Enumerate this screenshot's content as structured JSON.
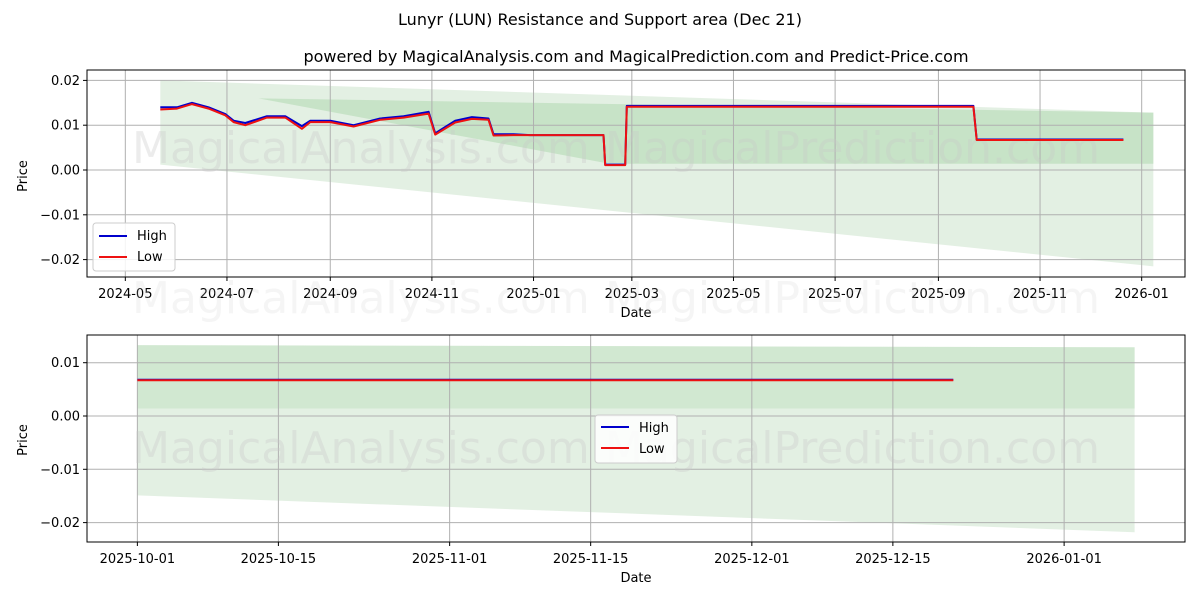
{
  "figure": {
    "title": "Lunyr (LUN) Resistance and Support area (Dec 21)",
    "subtitle": "powered by MagicalAnalysis.com and MagicalPrediction.com and Predict-Price.com",
    "watermarks": [
      "MagicalAnalysis.com",
      "MagicalPrediction.com"
    ]
  },
  "colors": {
    "high": "#0000cc",
    "low": "#ee1111",
    "band_dark": "#b9dcb9",
    "band_light": "#dcecdc",
    "grid": "#b0b0b0"
  },
  "legend": {
    "high_label": "High",
    "low_label": "Low"
  },
  "chart_data": [
    {
      "type": "line",
      "title": "Lunyr (LUN) Resistance and Support area (Dec 21)",
      "xlabel": "Date",
      "ylabel": "Price",
      "x_ticks": [
        "2024-05",
        "2024-07",
        "2024-09",
        "2024-11",
        "2025-01",
        "2025-03",
        "2025-05",
        "2025-07",
        "2025-09",
        "2025-11",
        "2026-01"
      ],
      "y_ticks": [
        "−0.02",
        "−0.01",
        "0.00",
        "0.01",
        "0.02"
      ],
      "ylim": [
        -0.0235,
        0.022
      ],
      "grid": true,
      "legend_position": "lower left",
      "series": [
        {
          "name": "High",
          "points": [
            [
              "2024-05-22",
              0.014
            ],
            [
              "2024-06-01",
              0.014
            ],
            [
              "2024-06-10",
              0.015
            ],
            [
              "2024-06-20",
              0.014
            ],
            [
              "2024-06-30",
              0.0125
            ],
            [
              "2024-07-05",
              0.011
            ],
            [
              "2024-07-12",
              0.0105
            ],
            [
              "2024-07-25",
              0.012
            ],
            [
              "2024-08-05",
              0.012
            ],
            [
              "2024-08-15",
              0.0098
            ],
            [
              "2024-08-20",
              0.011
            ],
            [
              "2024-09-01",
              0.011
            ],
            [
              "2024-09-15",
              0.01
            ],
            [
              "2024-10-01",
              0.0115
            ],
            [
              "2024-10-15",
              0.012
            ],
            [
              "2024-10-30",
              0.013
            ],
            [
              "2024-11-03",
              0.0082
            ],
            [
              "2024-11-15",
              0.011
            ],
            [
              "2024-11-25",
              0.0118
            ],
            [
              "2024-12-05",
              0.0115
            ],
            [
              "2024-12-08",
              0.008
            ],
            [
              "2024-12-20",
              0.008
            ],
            [
              "2024-12-30",
              0.0078
            ],
            [
              "2025-02-12",
              0.0078
            ],
            [
              "2025-02-13",
              0.0012
            ],
            [
              "2025-02-25",
              0.0012
            ],
            [
              "2025-02-26",
              0.0143
            ],
            [
              "2025-09-22",
              0.0143
            ],
            [
              "2025-09-24",
              0.0068
            ],
            [
              "2025-12-21",
              0.0068
            ]
          ]
        },
        {
          "name": "Low",
          "points": [
            [
              "2024-05-22",
              0.0135
            ],
            [
              "2024-06-01",
              0.0137
            ],
            [
              "2024-06-10",
              0.0147
            ],
            [
              "2024-06-20",
              0.0137
            ],
            [
              "2024-06-30",
              0.0122
            ],
            [
              "2024-07-05",
              0.0107
            ],
            [
              "2024-07-12",
              0.01
            ],
            [
              "2024-07-25",
              0.0117
            ],
            [
              "2024-08-05",
              0.0117
            ],
            [
              "2024-08-15",
              0.0092
            ],
            [
              "2024-08-20",
              0.0107
            ],
            [
              "2024-09-01",
              0.0107
            ],
            [
              "2024-09-15",
              0.0097
            ],
            [
              "2024-10-01",
              0.0112
            ],
            [
              "2024-10-15",
              0.0117
            ],
            [
              "2024-10-30",
              0.0126
            ],
            [
              "2024-11-03",
              0.0079
            ],
            [
              "2024-11-15",
              0.0106
            ],
            [
              "2024-11-25",
              0.0114
            ],
            [
              "2024-12-05",
              0.0112
            ],
            [
              "2024-12-08",
              0.0077
            ],
            [
              "2024-12-20",
              0.0078
            ],
            [
              "2024-12-30",
              0.0078
            ],
            [
              "2025-02-12",
              0.0078
            ],
            [
              "2025-02-13",
              0.0011
            ],
            [
              "2025-02-25",
              0.0011
            ],
            [
              "2025-02-26",
              0.0141
            ],
            [
              "2025-09-22",
              0.0141
            ],
            [
              "2025-09-24",
              0.0067
            ],
            [
              "2025-12-21",
              0.0067
            ]
          ]
        }
      ],
      "bands": [
        {
          "name": "support_area_light",
          "x": [
            "2024-05-22",
            "2026-01-08"
          ],
          "upper": [
            0.02,
            0.0128
          ],
          "lower": [
            0.0012,
            -0.0215
          ]
        },
        {
          "name": "resistance_area_dark",
          "x": [
            "2024-07-20",
            "2026-01-08"
          ],
          "upper": [
            0.016,
            0.0128
          ],
          "lower_line_from": [
            "2024-07-20",
            0.016,
            "2025-03-15",
            -0.0005
          ],
          "lower": 0.0014
        }
      ]
    },
    {
      "type": "line",
      "title": "",
      "xlabel": "Date",
      "ylabel": "Price",
      "x_ticks": [
        "2025-10-01",
        "2025-10-15",
        "2025-11-01",
        "2025-11-15",
        "2025-12-01",
        "2025-12-15",
        "2026-01-01"
      ],
      "y_ticks": [
        "−0.02",
        "−0.01",
        "0.00",
        "0.01"
      ],
      "ylim": [
        -0.0237,
        0.0151
      ],
      "grid": true,
      "legend_position": "center",
      "series": [
        {
          "name": "High",
          "points": [
            [
              "2025-10-01",
              0.0068
            ],
            [
              "2025-12-21",
              0.0068
            ]
          ]
        },
        {
          "name": "Low",
          "points": [
            [
              "2025-10-01",
              0.0067
            ],
            [
              "2025-12-21",
              0.0067
            ]
          ]
        }
      ],
      "bands": [
        {
          "name": "resistance_area_dark",
          "x": [
            "2025-10-01",
            "2026-01-08"
          ],
          "upper": [
            0.0133,
            0.0129
          ],
          "lower": [
            0.0014,
            0.0014
          ]
        },
        {
          "name": "support_area_light",
          "x": [
            "2025-10-01",
            "2026-01-08"
          ],
          "upper": [
            0.0014,
            0.0014
          ],
          "lower": [
            -0.0149,
            -0.0218
          ]
        }
      ]
    }
  ]
}
